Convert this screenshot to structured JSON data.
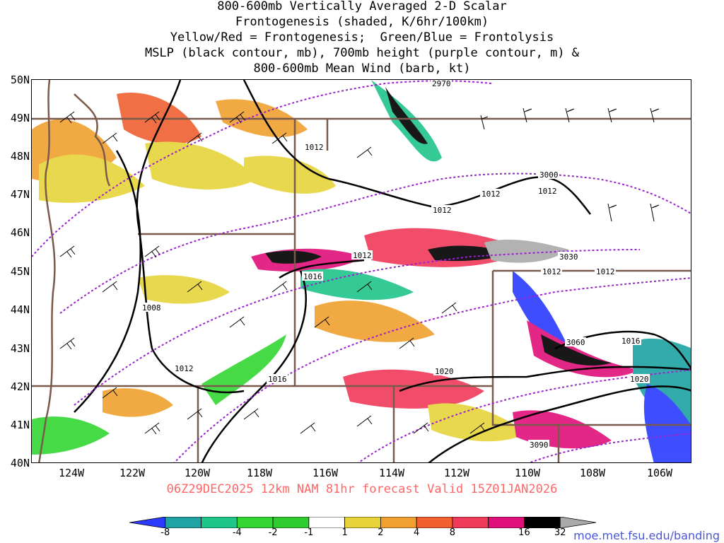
{
  "title": {
    "line1": "800-600mb Vertically Averaged 2-D Scalar",
    "line2": "Frontogenesis (shaded, K/6hr/100km)",
    "line3": "Yellow/Red = Frontogenesis;  Green/Blue = Frontolysis",
    "line4": "MSLP (black contour, mb), 700mb height (purple contour, m) &",
    "line5": "800-600mb Mean Wind (barb, kt)"
  },
  "lat_labels": [
    "50N",
    "49N",
    "48N",
    "47N",
    "46N",
    "45N",
    "44N",
    "43N",
    "42N",
    "41N",
    "40N"
  ],
  "lon_labels": [
    "124W",
    "122W",
    "120W",
    "118W",
    "116W",
    "114W",
    "112W",
    "110W",
    "108W",
    "106W"
  ],
  "valid_text": "06Z29DEC2025 12km NAM 81hr forecast Valid 15Z01JAN2026",
  "credit": "moe.met.fsu.edu/banding",
  "colorbar": {
    "labels": [
      "-8",
      "-4",
      "-2",
      "-1",
      "1",
      "2",
      "4",
      "8",
      "16",
      "32"
    ],
    "colors": [
      "#2a3bff",
      "#1fa3a3",
      "#20c58a",
      "#33d633",
      "#2ecc2e",
      "#ffffff",
      "#e6d43a",
      "#f0a030",
      "#f06030",
      "#f03a5a",
      "#e0107a",
      "#000000",
      "#aaaaaa"
    ]
  },
  "contour_labels": {
    "mslp": [
      "1012",
      "1012",
      "1012",
      "1012",
      "1012",
      "1016",
      "1012",
      "1012",
      "1008",
      "1012",
      "1016",
      "1016",
      "1020",
      "1020"
    ],
    "height": [
      "2970",
      "3000",
      "3030",
      "3060",
      "3090"
    ]
  },
  "colors": {
    "state_lines": "#7a5a4a",
    "mslp": "#000000",
    "height": "#9a22cc",
    "valid_text": "#ff6666",
    "credit": "#4a55d8"
  }
}
